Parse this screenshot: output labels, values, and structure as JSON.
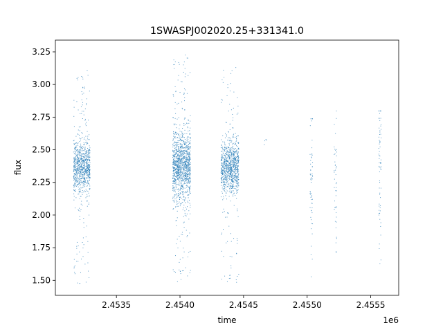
{
  "chart_data": {
    "type": "scatter",
    "title": "1SWASPJ002020.25+331341.0",
    "xlabel": "time",
    "ylabel": "flux",
    "x_offset_label": "1e6",
    "xlim": [
      2.45302,
      2.45572
    ],
    "ylim": [
      1.385,
      3.34
    ],
    "x_ticks": [
      2.4535,
      2.454,
      2.4545,
      2.455,
      2.4555
    ],
    "x_tick_labels": [
      "2.4535",
      "2.4540",
      "2.4545",
      "2.4550",
      "2.4555"
    ],
    "y_ticks": [
      1.5,
      1.75,
      2.0,
      2.25,
      2.5,
      2.75,
      3.0,
      3.25
    ],
    "y_tick_labels": [
      "1.50",
      "1.75",
      "2.00",
      "2.25",
      "2.50",
      "2.75",
      "3.00",
      "3.25"
    ],
    "grid": false,
    "point_color": "#1f77b4",
    "clusters": [
      {
        "x_start": 2.45316,
        "x_end": 2.45329,
        "y_center": 2.37,
        "y_core_spread": 0.1,
        "y_min": 1.47,
        "y_max": 3.12,
        "count": 900
      },
      {
        "x_start": 2.45394,
        "x_end": 2.45408,
        "y_center": 2.38,
        "y_core_spread": 0.13,
        "y_min": 1.49,
        "y_max": 3.23,
        "count": 1300
      },
      {
        "x_start": 2.45432,
        "x_end": 2.45446,
        "y_center": 2.37,
        "y_core_spread": 0.1,
        "y_min": 1.48,
        "y_max": 3.15,
        "count": 1000
      },
      {
        "x_start": 2.45466,
        "x_end": 2.45468,
        "y_center": 2.58,
        "y_core_spread": 0.02,
        "y_min": 2.54,
        "y_max": 2.61,
        "count": 4
      },
      {
        "x_start": 2.45502,
        "x_end": 2.45504,
        "y_center": 2.2,
        "y_core_spread": 0.3,
        "y_min": 1.53,
        "y_max": 2.74,
        "count": 60
      },
      {
        "x_start": 2.45521,
        "x_end": 2.45523,
        "y_center": 2.3,
        "y_core_spread": 0.25,
        "y_min": 1.72,
        "y_max": 2.8,
        "count": 45
      },
      {
        "x_start": 2.45556,
        "x_end": 2.45558,
        "y_center": 2.3,
        "y_core_spread": 0.3,
        "y_min": 1.63,
        "y_max": 2.8,
        "count": 70
      }
    ]
  }
}
